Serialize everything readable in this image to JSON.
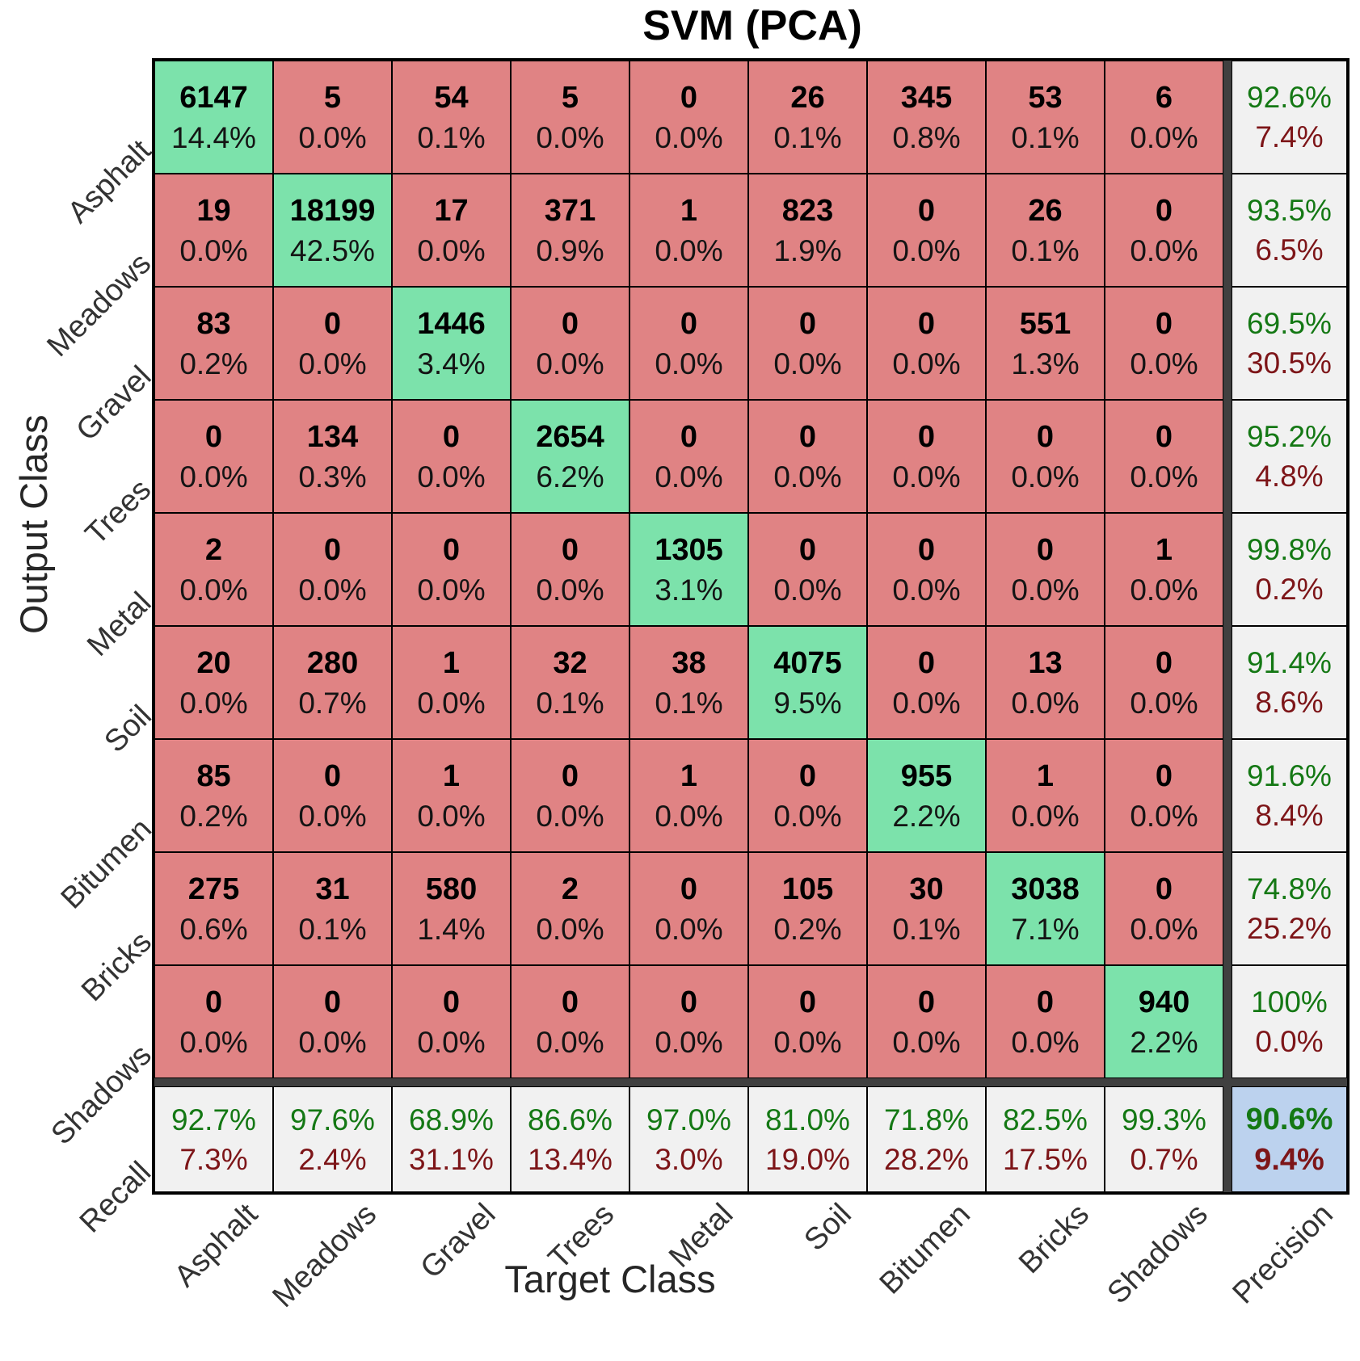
{
  "title": "SVM (PCA)",
  "labels": {
    "x_axis": "Target Class",
    "y_axis": "Output Class",
    "recall": "Recall",
    "precision": "Precision"
  },
  "colors": {
    "diagonal_green": "#7CE2AB",
    "off_diagonal_red": "#E08384",
    "summary_gray": "#F1F1F1",
    "overall_blue": "#BCD2EE",
    "good_text_green": "#147814",
    "bad_text_red": "#7D1518",
    "separator_gray": "#404040",
    "grid_line": "#000000"
  },
  "chart_data": {
    "type": "heatmap",
    "title": "SVM (PCA)",
    "xlabel": "Target Class",
    "ylabel": "Output Class",
    "classes": [
      "Asphalt",
      "Meadows",
      "Gravel",
      "Trees",
      "Metal",
      "Soil",
      "Bitumen",
      "Bricks",
      "Shadows"
    ],
    "counts": [
      [
        6147,
        5,
        54,
        5,
        0,
        26,
        345,
        53,
        6
      ],
      [
        19,
        18199,
        17,
        371,
        1,
        823,
        0,
        26,
        0
      ],
      [
        83,
        0,
        1446,
        0,
        0,
        0,
        0,
        551,
        0
      ],
      [
        0,
        134,
        0,
        2654,
        0,
        0,
        0,
        0,
        0
      ],
      [
        2,
        0,
        0,
        0,
        1305,
        0,
        0,
        0,
        1
      ],
      [
        20,
        280,
        1,
        32,
        38,
        4075,
        0,
        13,
        0
      ],
      [
        85,
        0,
        1,
        0,
        1,
        0,
        955,
        1,
        0
      ],
      [
        275,
        31,
        580,
        2,
        0,
        105,
        30,
        3038,
        0
      ],
      [
        0,
        0,
        0,
        0,
        0,
        0,
        0,
        0,
        940
      ]
    ],
    "percents": [
      [
        "14.4%",
        "0.0%",
        "0.1%",
        "0.0%",
        "0.0%",
        "0.1%",
        "0.8%",
        "0.1%",
        "0.0%"
      ],
      [
        "0.0%",
        "42.5%",
        "0.0%",
        "0.9%",
        "0.0%",
        "1.9%",
        "0.0%",
        "0.1%",
        "0.0%"
      ],
      [
        "0.2%",
        "0.0%",
        "3.4%",
        "0.0%",
        "0.0%",
        "0.0%",
        "0.0%",
        "1.3%",
        "0.0%"
      ],
      [
        "0.0%",
        "0.3%",
        "0.0%",
        "6.2%",
        "0.0%",
        "0.0%",
        "0.0%",
        "0.0%",
        "0.0%"
      ],
      [
        "0.0%",
        "0.0%",
        "0.0%",
        "0.0%",
        "3.1%",
        "0.0%",
        "0.0%",
        "0.0%",
        "0.0%"
      ],
      [
        "0.0%",
        "0.7%",
        "0.0%",
        "0.1%",
        "0.1%",
        "9.5%",
        "0.0%",
        "0.0%",
        "0.0%"
      ],
      [
        "0.2%",
        "0.0%",
        "0.0%",
        "0.0%",
        "0.0%",
        "0.0%",
        "2.2%",
        "0.0%",
        "0.0%"
      ],
      [
        "0.6%",
        "0.1%",
        "1.4%",
        "0.0%",
        "0.0%",
        "0.2%",
        "0.1%",
        "7.1%",
        "0.0%"
      ],
      [
        "0.0%",
        "0.0%",
        "0.0%",
        "0.0%",
        "0.0%",
        "0.0%",
        "0.0%",
        "0.0%",
        "2.2%"
      ]
    ],
    "precision": [
      [
        "92.6%",
        "7.4%"
      ],
      [
        "93.5%",
        "6.5%"
      ],
      [
        "69.5%",
        "30.5%"
      ],
      [
        "95.2%",
        "4.8%"
      ],
      [
        "99.8%",
        "0.2%"
      ],
      [
        "91.4%",
        "8.6%"
      ],
      [
        "91.6%",
        "8.4%"
      ],
      [
        "74.8%",
        "25.2%"
      ],
      [
        "100%",
        "0.0%"
      ]
    ],
    "recall": [
      [
        "92.7%",
        "7.3%"
      ],
      [
        "97.6%",
        "2.4%"
      ],
      [
        "68.9%",
        "31.1%"
      ],
      [
        "86.6%",
        "13.4%"
      ],
      [
        "97.0%",
        "3.0%"
      ],
      [
        "81.0%",
        "19.0%"
      ],
      [
        "71.8%",
        "28.2%"
      ],
      [
        "82.5%",
        "17.5%"
      ],
      [
        "99.3%",
        "0.7%"
      ]
    ],
    "overall": [
      "90.6%",
      "9.4%"
    ]
  }
}
